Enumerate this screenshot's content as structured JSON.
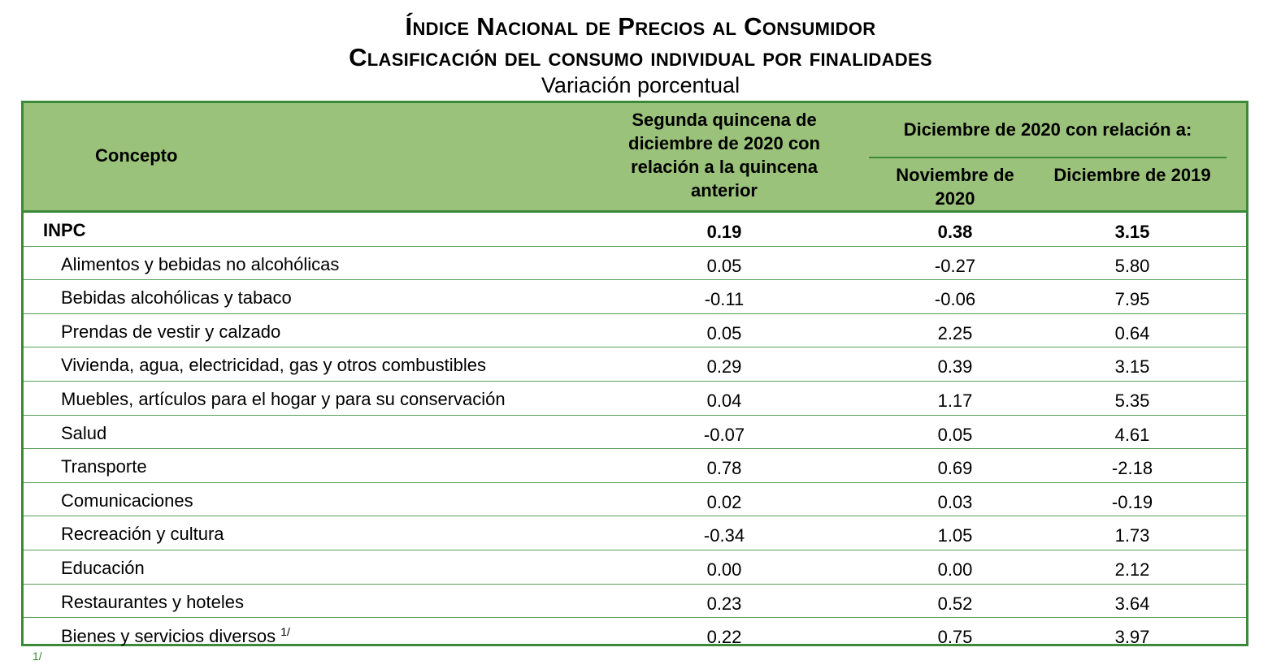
{
  "title_line1": "Índice Nacional de Precios al Consumidor",
  "title_line2": "Clasificación del consumo individual por finalidades",
  "subtitle": "Variación porcentual",
  "headers": {
    "concepto": "Concepto",
    "quincena": "Segunda quincena de diciembre de 2020 con relación a la quincena anterior",
    "group": "Diciembre de 2020 con relación a:",
    "noviembre": "Noviembre de 2020",
    "diciembre": "Diciembre de 2019"
  },
  "rows": [
    {
      "concepto": "INPC",
      "quincena": "0.19",
      "noviembre": "0.38",
      "diciembre": "3.15",
      "bold": true
    },
    {
      "concepto": "Alimentos y bebidas no alcohólicas",
      "quincena": "0.05",
      "noviembre": "-0.27",
      "diciembre": "5.80"
    },
    {
      "concepto": "Bebidas alcohólicas y tabaco",
      "quincena": "-0.11",
      "noviembre": "-0.06",
      "diciembre": "7.95"
    },
    {
      "concepto": "Prendas de vestir y calzado",
      "quincena": "0.05",
      "noviembre": "2.25",
      "diciembre": "0.64"
    },
    {
      "concepto": "Vivienda, agua, electricidad, gas y otros combustibles",
      "quincena": "0.29",
      "noviembre": "0.39",
      "diciembre": "3.15"
    },
    {
      "concepto": "Muebles, artículos para el hogar y para su conservación",
      "quincena": "0.04",
      "noviembre": "1.17",
      "diciembre": "5.35"
    },
    {
      "concepto": "Salud",
      "quincena": "-0.07",
      "noviembre": "0.05",
      "diciembre": "4.61"
    },
    {
      "concepto": "Transporte",
      "quincena": "0.78",
      "noviembre": "0.69",
      "diciembre": "-2.18"
    },
    {
      "concepto": "Comunicaciones",
      "quincena": "0.02",
      "noviembre": "0.03",
      "diciembre": "-0.19"
    },
    {
      "concepto": "Recreación y cultura",
      "quincena": "-0.34",
      "noviembre": "1.05",
      "diciembre": "1.73"
    },
    {
      "concepto": "Educación",
      "quincena": "0.00",
      "noviembre": "0.00",
      "diciembre": "2.12"
    },
    {
      "concepto": "Restaurantes y hoteles",
      "quincena": "0.23",
      "noviembre": "0.52",
      "diciembre": "3.64"
    },
    {
      "concepto": "Bienes y servicios diversos",
      "sup": "1/",
      "quincena": "0.22",
      "noviembre": "0.75",
      "diciembre": "3.97"
    }
  ],
  "footnote_mark": "1/"
}
